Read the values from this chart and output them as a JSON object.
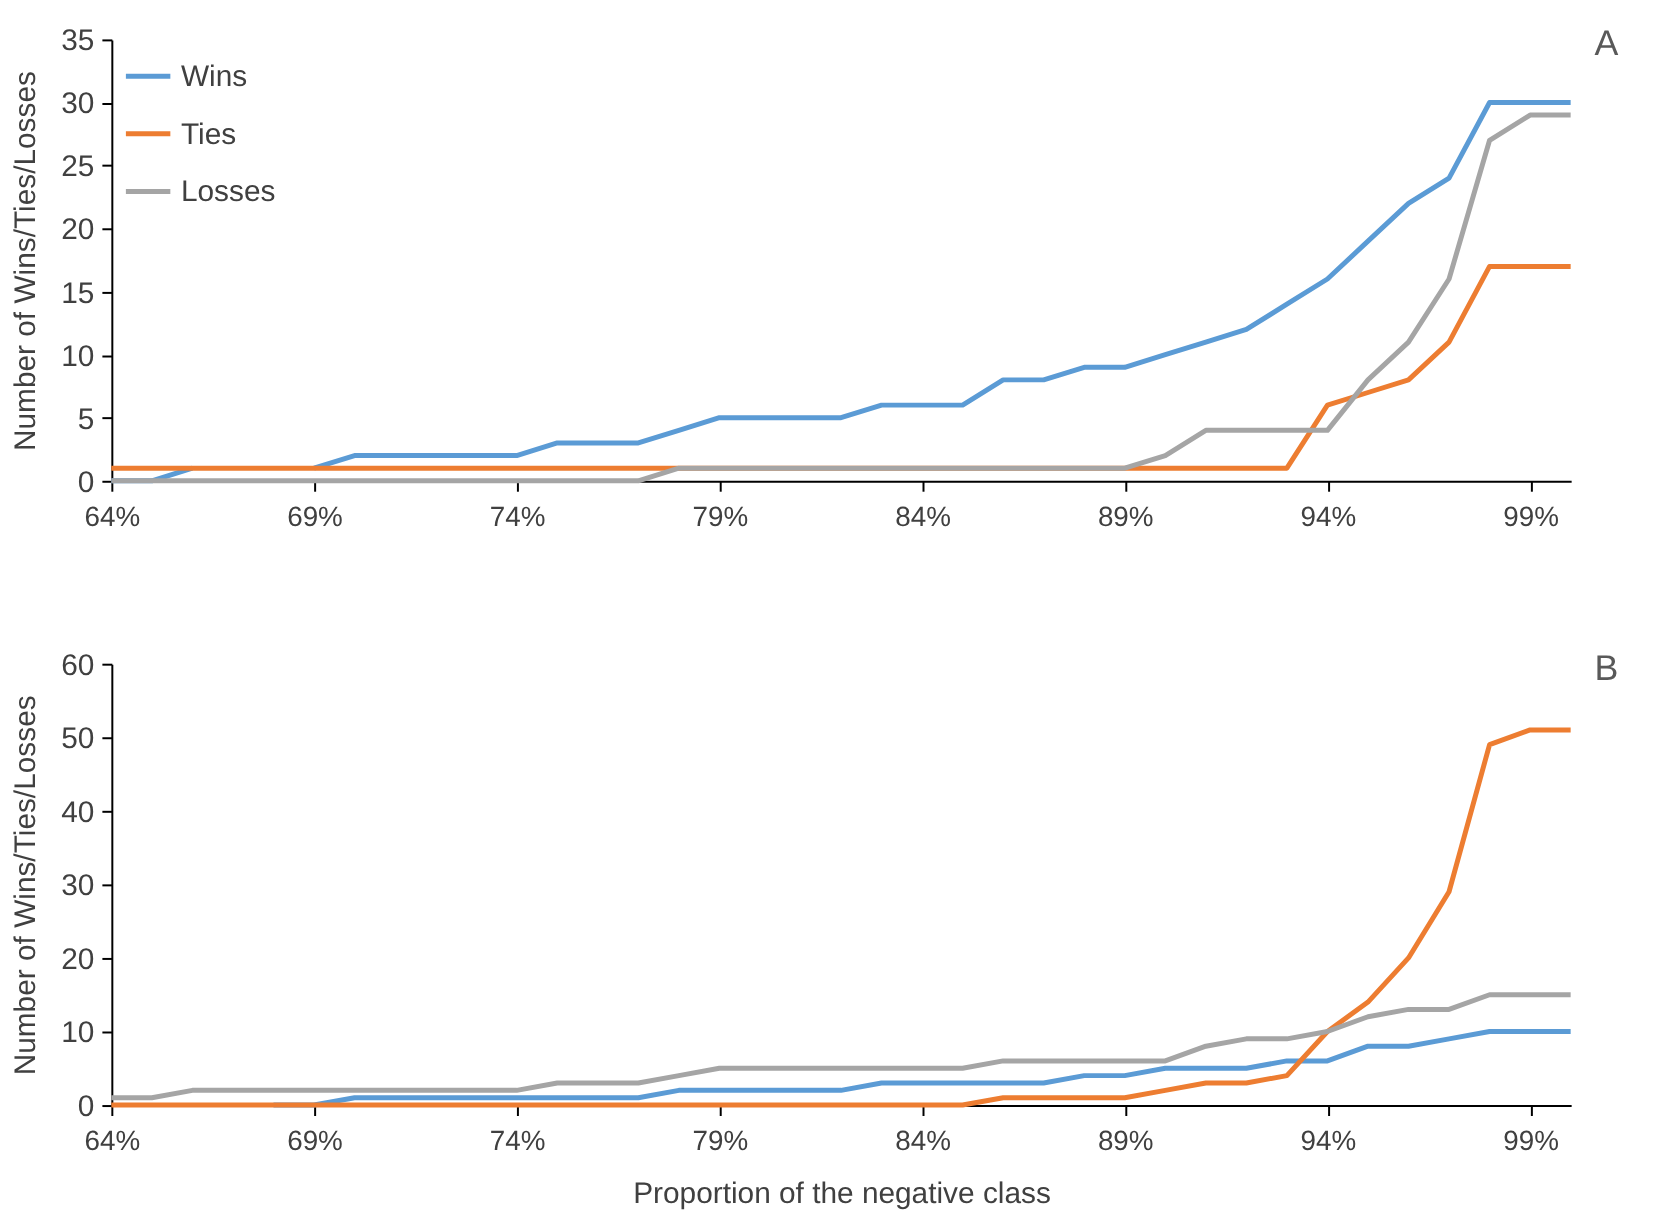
{
  "chart_data": [
    {
      "type": "line",
      "ylabel": "Number of Wins/Ties/Losses",
      "annotations": [
        "A"
      ],
      "legend": "top left",
      "grid": false,
      "marker": "none",
      "line_style": "solid",
      "x": [
        64,
        65,
        66,
        67,
        68,
        69,
        70,
        71,
        72,
        73,
        74,
        75,
        76,
        77,
        78,
        79,
        80,
        81,
        82,
        83,
        84,
        85,
        86,
        87,
        88,
        89,
        90,
        91,
        92,
        93,
        94,
        95,
        96,
        97,
        98,
        99,
        100
      ],
      "xlim": [
        64,
        100
      ],
      "xticks": [
        {
          "value": 64,
          "label": "64%"
        },
        {
          "value": 69,
          "label": "69%"
        },
        {
          "value": 74,
          "label": "74%"
        },
        {
          "value": 79,
          "label": "79%"
        },
        {
          "value": 84,
          "label": "84%"
        },
        {
          "value": 89,
          "label": "89%"
        },
        {
          "value": 94,
          "label": "94%"
        },
        {
          "value": 99,
          "label": "99%"
        }
      ],
      "ylim": [
        0,
        35
      ],
      "yticks": [
        0,
        5,
        10,
        15,
        20,
        25,
        30,
        35
      ],
      "series": [
        {
          "name": "Wins",
          "color": "#5b9bd5",
          "values": [
            0,
            0,
            1,
            null,
            null,
            1,
            2,
            2,
            2,
            2,
            2,
            3,
            3,
            3,
            4,
            5,
            5,
            5,
            5,
            6,
            6,
            6,
            8,
            8,
            9,
            9,
            10,
            11,
            12,
            14,
            16,
            19,
            22,
            24,
            30,
            30,
            30
          ]
        },
        {
          "name": "Ties",
          "color": "#ed7d31",
          "values": [
            1,
            1,
            1,
            1,
            1,
            1,
            1,
            1,
            1,
            1,
            1,
            1,
            1,
            1,
            1,
            1,
            1,
            1,
            1,
            1,
            1,
            1,
            1,
            1,
            1,
            1,
            1,
            1,
            1,
            1,
            6,
            7,
            8,
            11,
            17,
            17,
            17
          ]
        },
        {
          "name": "Losses",
          "color": "#a5a5a5",
          "values": [
            0,
            0,
            0,
            0,
            0,
            0,
            0,
            0,
            0,
            0,
            0,
            0,
            0,
            0,
            1,
            1,
            1,
            1,
            1,
            1,
            1,
            1,
            1,
            1,
            1,
            1,
            2,
            4,
            4,
            4,
            4,
            8,
            11,
            16,
            27,
            29,
            29
          ]
        }
      ]
    },
    {
      "type": "line",
      "xlabel": "Proportion of the negative class",
      "ylabel": "Number of Wins/Ties/Losses",
      "annotations": [
        "B"
      ],
      "legend": "top left",
      "grid": false,
      "marker": "none",
      "line_style": "solid",
      "x": [
        64,
        65,
        66,
        67,
        68,
        69,
        70,
        71,
        72,
        73,
        74,
        75,
        76,
        77,
        78,
        79,
        80,
        81,
        82,
        83,
        84,
        85,
        86,
        87,
        88,
        89,
        90,
        91,
        92,
        93,
        94,
        95,
        96,
        97,
        98,
        99,
        100
      ],
      "xlim": [
        64,
        100
      ],
      "xticks": [
        {
          "value": 64,
          "label": "64%"
        },
        {
          "value": 69,
          "label": "69%"
        },
        {
          "value": 74,
          "label": "74%"
        },
        {
          "value": 79,
          "label": "79%"
        },
        {
          "value": 84,
          "label": "84%"
        },
        {
          "value": 89,
          "label": "89%"
        },
        {
          "value": 94,
          "label": "94%"
        },
        {
          "value": 99,
          "label": "99%"
        }
      ],
      "ylim": [
        0,
        60
      ],
      "yticks": [
        0,
        10,
        20,
        30,
        40,
        50,
        60
      ],
      "series": [
        {
          "name": "Wins",
          "color": "#5b9bd5",
          "values": [
            null,
            null,
            null,
            null,
            0,
            0,
            1,
            1,
            1,
            1,
            1,
            1,
            1,
            1,
            2,
            2,
            2,
            2,
            2,
            3,
            3,
            3,
            3,
            3,
            4,
            4,
            5,
            5,
            5,
            6,
            6,
            8,
            8,
            9,
            10,
            10,
            10
          ]
        },
        {
          "name": "Ties",
          "color": "#ed7d31",
          "values": [
            0,
            0,
            0,
            0,
            0,
            0,
            0,
            0,
            0,
            0,
            0,
            0,
            0,
            0,
            0,
            0,
            0,
            0,
            0,
            0,
            0,
            0,
            1,
            1,
            1,
            1,
            2,
            3,
            3,
            4,
            10,
            14,
            20,
            29,
            49,
            51,
            51
          ]
        },
        {
          "name": "Losses",
          "color": "#a5a5a5",
          "values": [
            1,
            1,
            2,
            2,
            2,
            2,
            2,
            2,
            2,
            2,
            2,
            3,
            3,
            3,
            4,
            5,
            5,
            5,
            5,
            5,
            5,
            5,
            6,
            6,
            6,
            6,
            6,
            8,
            9,
            9,
            10,
            12,
            13,
            13,
            15,
            15,
            15
          ]
        }
      ]
    }
  ]
}
